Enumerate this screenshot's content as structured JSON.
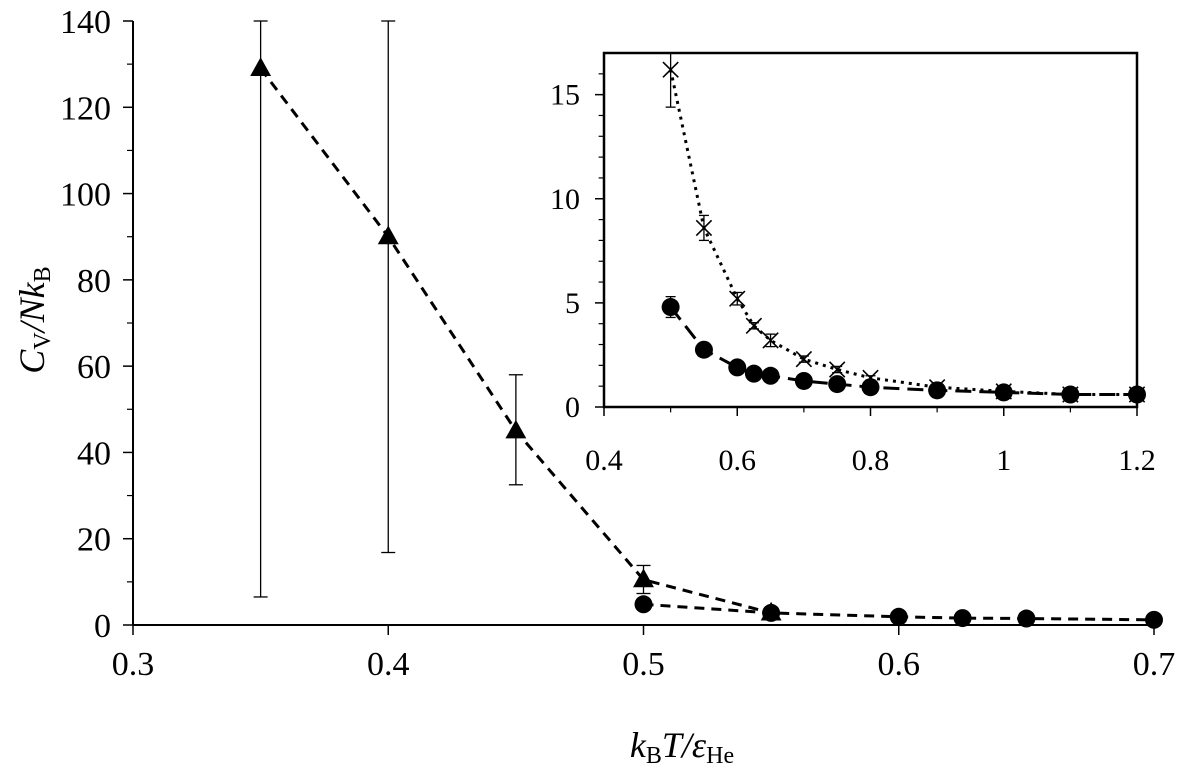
{
  "chart_data": [
    {
      "type": "scatter",
      "panel": "main",
      "xlabel": {
        "k": "k",
        "k_sub": "B",
        "t": "T/",
        "eps": "ε",
        "eps_sub": "He"
      },
      "ylabel": {
        "c": "C",
        "c_sub": "V",
        "n": "/Nk",
        "n_sub": "B"
      },
      "xlim": [
        0.3,
        0.7
      ],
      "ylim": [
        0,
        140
      ],
      "x_ticks": [
        "0.3",
        "0.4",
        "0.5",
        "0.6",
        "0.7"
      ],
      "y_ticks": [
        "0",
        "20",
        "40",
        "60",
        "80",
        "100",
        "120",
        "140"
      ],
      "grid": false,
      "series": [
        {
          "marker": "triangle",
          "line": "dashed",
          "color": "#000000",
          "x": [
            0.35,
            0.4,
            0.45,
            0.5,
            0.55
          ],
          "y": [
            129,
            90,
            45,
            10.5,
            2.8
          ],
          "err_low": [
            6.5,
            16.8,
            32.5,
            7.3,
            null
          ],
          "err_high": [
            140,
            140,
            58,
            13.8,
            null
          ]
        },
        {
          "marker": "circle",
          "line": "dashed",
          "color": "#000000",
          "x": [
            0.5,
            0.55,
            0.6,
            0.625,
            0.65,
            0.7
          ],
          "y": [
            4.8,
            2.8,
            1.9,
            1.6,
            1.5,
            1.2
          ]
        }
      ]
    },
    {
      "type": "scatter",
      "panel": "inset",
      "xlim": [
        0.4,
        1.2
      ],
      "ylim": [
        0,
        17
      ],
      "x_ticks": [
        "0.4",
        "0.6",
        "0.8",
        "1",
        "1.2"
      ],
      "y_ticks": [
        "0",
        "5",
        "10",
        "15"
      ],
      "grid": false,
      "series": [
        {
          "marker": "cross",
          "line": "dotted",
          "color": "#000000",
          "x": [
            0.5,
            0.55,
            0.6,
            0.625,
            0.65,
            0.7,
            0.75,
            0.8,
            0.9,
            1.0,
            1.1,
            1.2
          ],
          "y": [
            16.2,
            8.6,
            5.2,
            3.9,
            3.2,
            2.3,
            1.8,
            1.4,
            0.95,
            0.75,
            0.6,
            0.6
          ],
          "err": [
            1.8,
            0.6,
            0.3,
            0.15,
            0.3,
            0.15,
            0.15,
            0.1,
            0.1,
            0.05,
            0.05,
            0.05
          ]
        },
        {
          "marker": "circle",
          "line": "dashed",
          "color": "#000000",
          "x": [
            0.5,
            0.55,
            0.6,
            0.625,
            0.65,
            0.7,
            0.75,
            0.8,
            0.9,
            1.0,
            1.1,
            1.2
          ],
          "y": [
            4.8,
            2.75,
            1.9,
            1.6,
            1.5,
            1.25,
            1.1,
            0.95,
            0.8,
            0.7,
            0.6,
            0.6
          ],
          "err": [
            0.5,
            0.1,
            0.05,
            0.05,
            0.05,
            0.05,
            0.05,
            0.05,
            0.05,
            0.05,
            0.05,
            0.05
          ]
        }
      ]
    }
  ]
}
